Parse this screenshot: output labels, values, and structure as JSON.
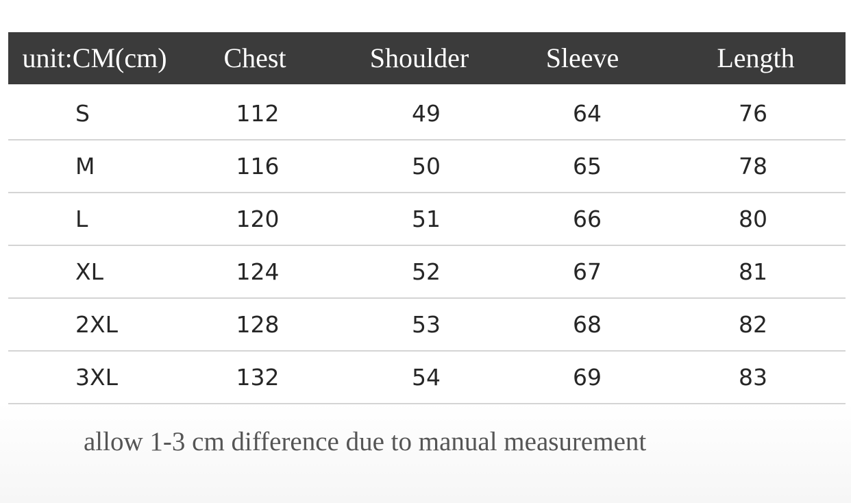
{
  "table": {
    "header": [
      "unit:CM(cm)",
      "Chest",
      "Shoulder",
      "Sleeve",
      "Length"
    ],
    "rows": [
      [
        "S",
        112,
        49,
        64,
        76
      ],
      [
        "M",
        116,
        50,
        65,
        78
      ],
      [
        "L",
        120,
        51,
        66,
        80
      ],
      [
        "XL",
        124,
        52,
        67,
        81
      ],
      [
        "2XL",
        128,
        53,
        68,
        82
      ],
      [
        "3XL",
        132,
        54,
        69,
        83
      ]
    ]
  },
  "note": "allow 1-3 cm difference due to manual measurement"
}
